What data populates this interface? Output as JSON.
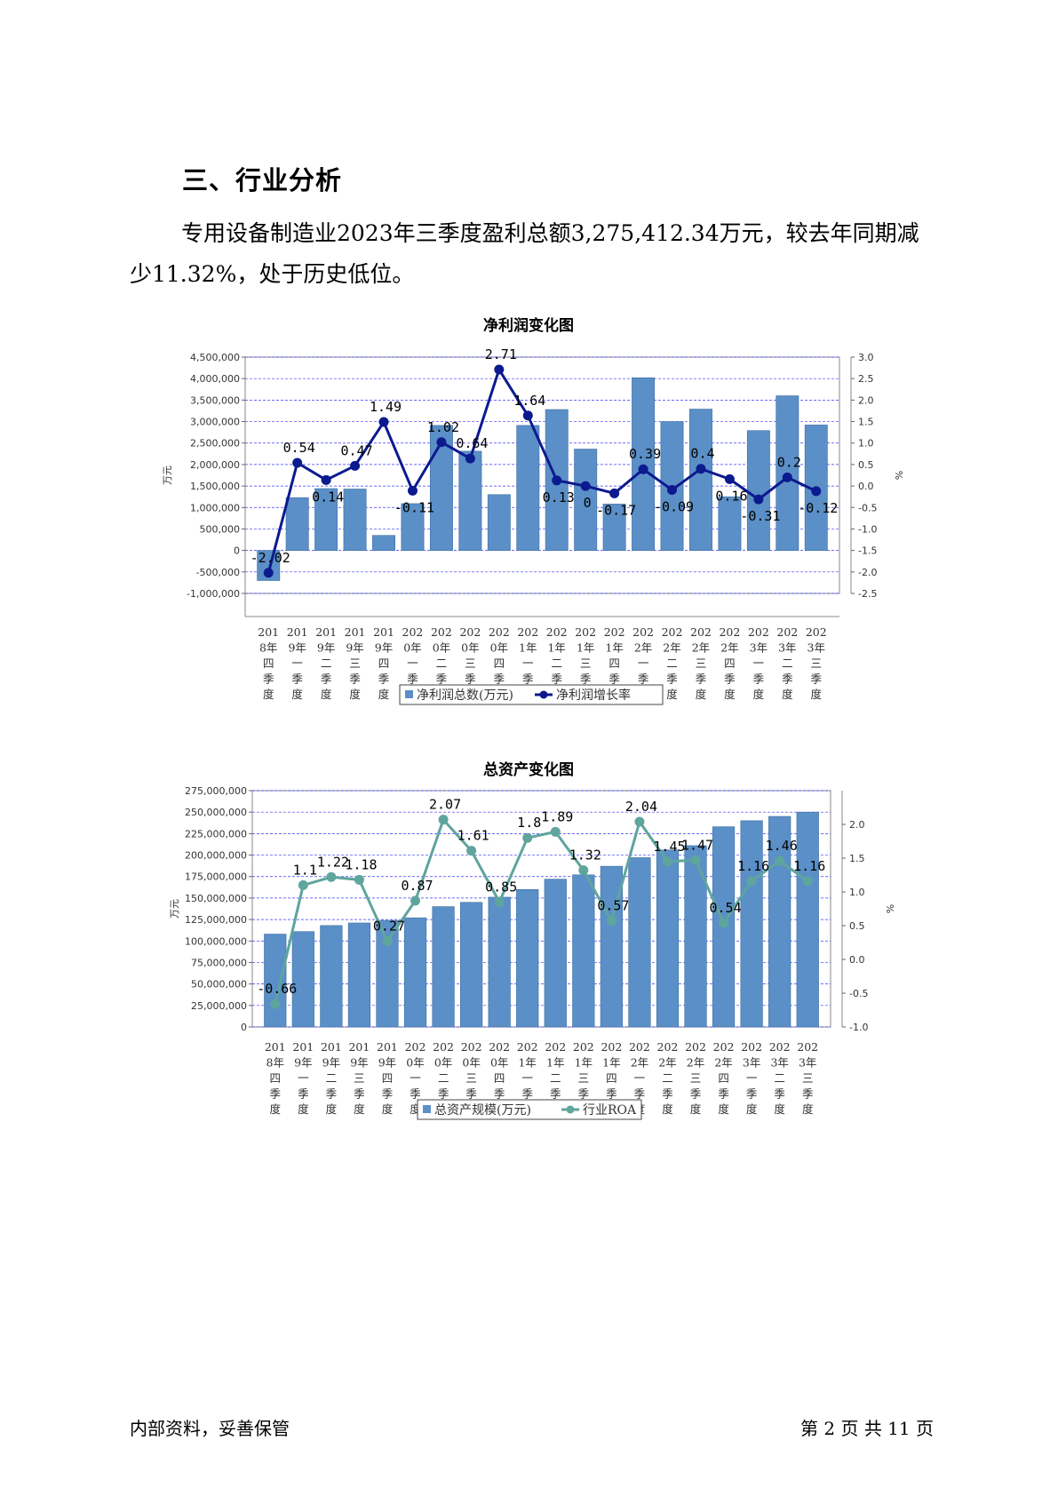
{
  "heading": "三、行业分析",
  "paragraph": "专用设备制造业2023年三季度盈利总额3,275,412.34万元，较去年同期减少11.32%，处于历史低位。",
  "footer": {
    "left": "内部资料，妥善保管",
    "right": "第 2 页   共 11 页"
  },
  "colors": {
    "bar": "#5b8fc7",
    "bar_border": "#3f6fa3",
    "line1": "#0c1a8f",
    "line2": "#5ea59e",
    "grid": "#3a3aff"
  },
  "chart_data": [
    {
      "type": "bar+line",
      "title": "净利润变化图",
      "ylabel": "万元",
      "y2label": "%",
      "ylim": [
        -1000000,
        4500000
      ],
      "y2lim": [
        -2.5,
        3.0
      ],
      "yticks": [
        "4,500,000",
        "4,000,000",
        "3,500,000",
        "3,000,000",
        "2,500,000",
        "2,000,000",
        "1,500,000",
        "1,000,000",
        "500,000",
        "0",
        "-500,000",
        "-1,000,000"
      ],
      "y2ticks": [
        "3.0",
        "2.5",
        "2.0",
        "1.5",
        "1.0",
        "0.5",
        "0.0",
        "-0.5",
        "-1.0",
        "-1.5",
        "-2.0",
        "-2.5"
      ],
      "categories": [
        "2018年四季度",
        "2019年一季度",
        "2019年二季度",
        "2019年三季度",
        "2019年四季度",
        "2020年一季度",
        "2020年二季度",
        "2020年三季度",
        "2020年四季度",
        "2021年一季度",
        "2021年二季度",
        "2021年三季度",
        "2021年四季度",
        "2022年一季度",
        "2022年二季度",
        "2022年三季度",
        "2022年四季度",
        "2023年一季度",
        "2023年二季度",
        "2023年三季度"
      ],
      "series": [
        {
          "name": "净利润总数(万元)",
          "kind": "bar",
          "values": [
            -700000,
            1230000,
            1440000,
            1430000,
            350000,
            1090000,
            2910000,
            2310000,
            1300000,
            2910000,
            3280000,
            2360000,
            1080000,
            4020000,
            3000000,
            3290000,
            1250000,
            2790000,
            3600000,
            2920000
          ]
        },
        {
          "name": "净利润增长率",
          "kind": "line",
          "values": [
            -2.02,
            0.54,
            0.14,
            0.47,
            1.49,
            -0.11,
            1.02,
            0.64,
            2.71,
            1.64,
            0.13,
            0,
            -0.17,
            0.39,
            -0.09,
            0.4,
            0.16,
            -0.31,
            0.2,
            -0.12
          ],
          "labels": [
            "-2.02",
            "0.54",
            "0.14",
            "0.47",
            "1.49",
            "-0.11",
            "1.02",
            "0.64",
            "2.71",
            "1.64",
            "0.13",
            "0",
            "-0.17",
            "0.39",
            "-0.09",
            "0.4",
            "0.16",
            "-0.31",
            "0.2",
            "-0.12"
          ]
        }
      ]
    },
    {
      "type": "bar+line",
      "title": "总资产变化图",
      "ylabel": "万元",
      "y2label": "%",
      "ylim": [
        0,
        275000000
      ],
      "y2lim": [
        -1.0,
        2.5
      ],
      "yticks": [
        "275,000,000",
        "250,000,000",
        "225,000,000",
        "200,000,000",
        "175,000,000",
        "150,000,000",
        "125,000,000",
        "100,000,000",
        "75,000,000",
        "50,000,000",
        "25,000,000",
        "0"
      ],
      "y2ticks": [
        "2.0",
        "1.5",
        "1.0",
        "0.5",
        "0.0",
        "-0.5",
        "-1.0"
      ],
      "categories": [
        "2018年四季度",
        "2019年一季度",
        "2019年二季度",
        "2019年三季度",
        "2019年四季度",
        "2020年一季度",
        "2020年二季度",
        "2020年三季度",
        "2020年四季度",
        "2021年一季度",
        "2021年二季度",
        "2021年三季度",
        "2021年四季度",
        "2022年一季度",
        "2022年二季度",
        "2022年三季度",
        "2022年四季度",
        "2023年一季度",
        "2023年二季度",
        "2023年三季度"
      ],
      "series": [
        {
          "name": "总资产规模(万元)",
          "kind": "bar",
          "values": [
            108000000,
            111000000,
            118000000,
            121000000,
            124000000,
            127000000,
            140000000,
            145000000,
            151000000,
            160000000,
            172000000,
            177000000,
            187000000,
            197000000,
            206000000,
            211000000,
            233000000,
            240000000,
            245000000,
            250000000
          ]
        },
        {
          "name": "行业ROA",
          "kind": "line",
          "values": [
            -0.66,
            1.1,
            1.22,
            1.18,
            0.27,
            0.87,
            2.07,
            1.61,
            0.85,
            1.8,
            1.89,
            1.32,
            0.57,
            2.04,
            1.45,
            1.47,
            0.54,
            1.16,
            1.46,
            1.16
          ],
          "labels": [
            "-0.66",
            "1.1",
            "1.22",
            "1.18",
            "0.27",
            "0.87",
            "2.07",
            "1.61",
            "0.85",
            "1.8",
            "1.89",
            "1.32",
            "0.57",
            "2.04",
            "1.45",
            "1.47",
            "0.54",
            "1.16",
            "1.46",
            "1.16"
          ]
        }
      ]
    }
  ]
}
